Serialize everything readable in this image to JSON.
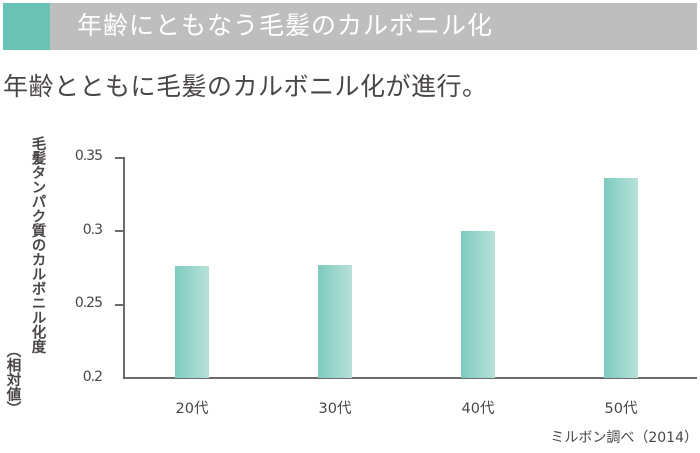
{
  "header": {
    "title": "年齢にともなう毛髪のカルボニル化",
    "accent_color": "#68c3b5",
    "bar_color": "#bdbebd"
  },
  "subtitle": "年齢とともに毛髪のカルボニル化が進行。",
  "source": "ミルボン調べ（2014）",
  "chart_data": {
    "type": "bar",
    "title": "年齢にともなう毛髪のカルボニル化",
    "subtitle": "年齢とともに毛髪のカルボニル化が進行。",
    "categories": [
      "20代",
      "30代",
      "40代",
      "50代"
    ],
    "values": [
      0.276,
      0.277,
      0.3,
      0.336
    ],
    "xlabel": "",
    "ylabel": "毛髪タンパク質のカルボニル化度（相対値）",
    "ylabel_main": "毛髪タンパク質のカルボニル化度",
    "ylabel_sub": "（相対値）",
    "ylim": [
      0.2,
      0.35
    ],
    "yticks": [
      "0.35",
      "0.3",
      "0.25",
      "0.2"
    ],
    "grid": false,
    "legend": null,
    "bar_color": "#7ecbbf",
    "annotation": "ミルボン調べ（2014）"
  }
}
